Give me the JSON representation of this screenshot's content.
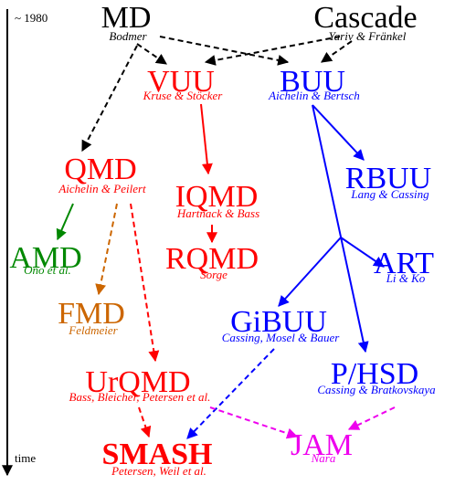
{
  "timeline": {
    "start": "~ 1980",
    "end": "time"
  },
  "nodes": [
    {
      "label": "MD",
      "authors": "Bodmer"
    },
    {
      "label": "Cascade",
      "authors": "Yariv & Fränkel"
    },
    {
      "label": "VUU",
      "authors": "Kruse & Stöcker"
    },
    {
      "label": "BUU",
      "authors": "Aichelin & Bertsch"
    },
    {
      "label": "QMD",
      "authors": "Aichelin & Peilert"
    },
    {
      "label": "IQMD",
      "authors": "Hartnack & Bass"
    },
    {
      "label": "RBUU",
      "authors": "Lang & Cassing"
    },
    {
      "label": "AMD",
      "authors": "Ono et al."
    },
    {
      "label": "RQMD",
      "authors": "Sorge"
    },
    {
      "label": "ART",
      "authors": "Li & Ko"
    },
    {
      "label": "FMD",
      "authors": "Feldmeier"
    },
    {
      "label": "GiBUU",
      "authors": "Cassing, Mosel & Bauer"
    },
    {
      "label": "UrQMD",
      "authors": "Bass, Bleicher, Petersen et al."
    },
    {
      "label": "P/HSD",
      "authors": "Cassing & Bratkovskaya"
    },
    {
      "label": "SMASH",
      "authors": "Petersen, Weil et al."
    },
    {
      "label": "JAM",
      "authors": "Nara"
    }
  ]
}
